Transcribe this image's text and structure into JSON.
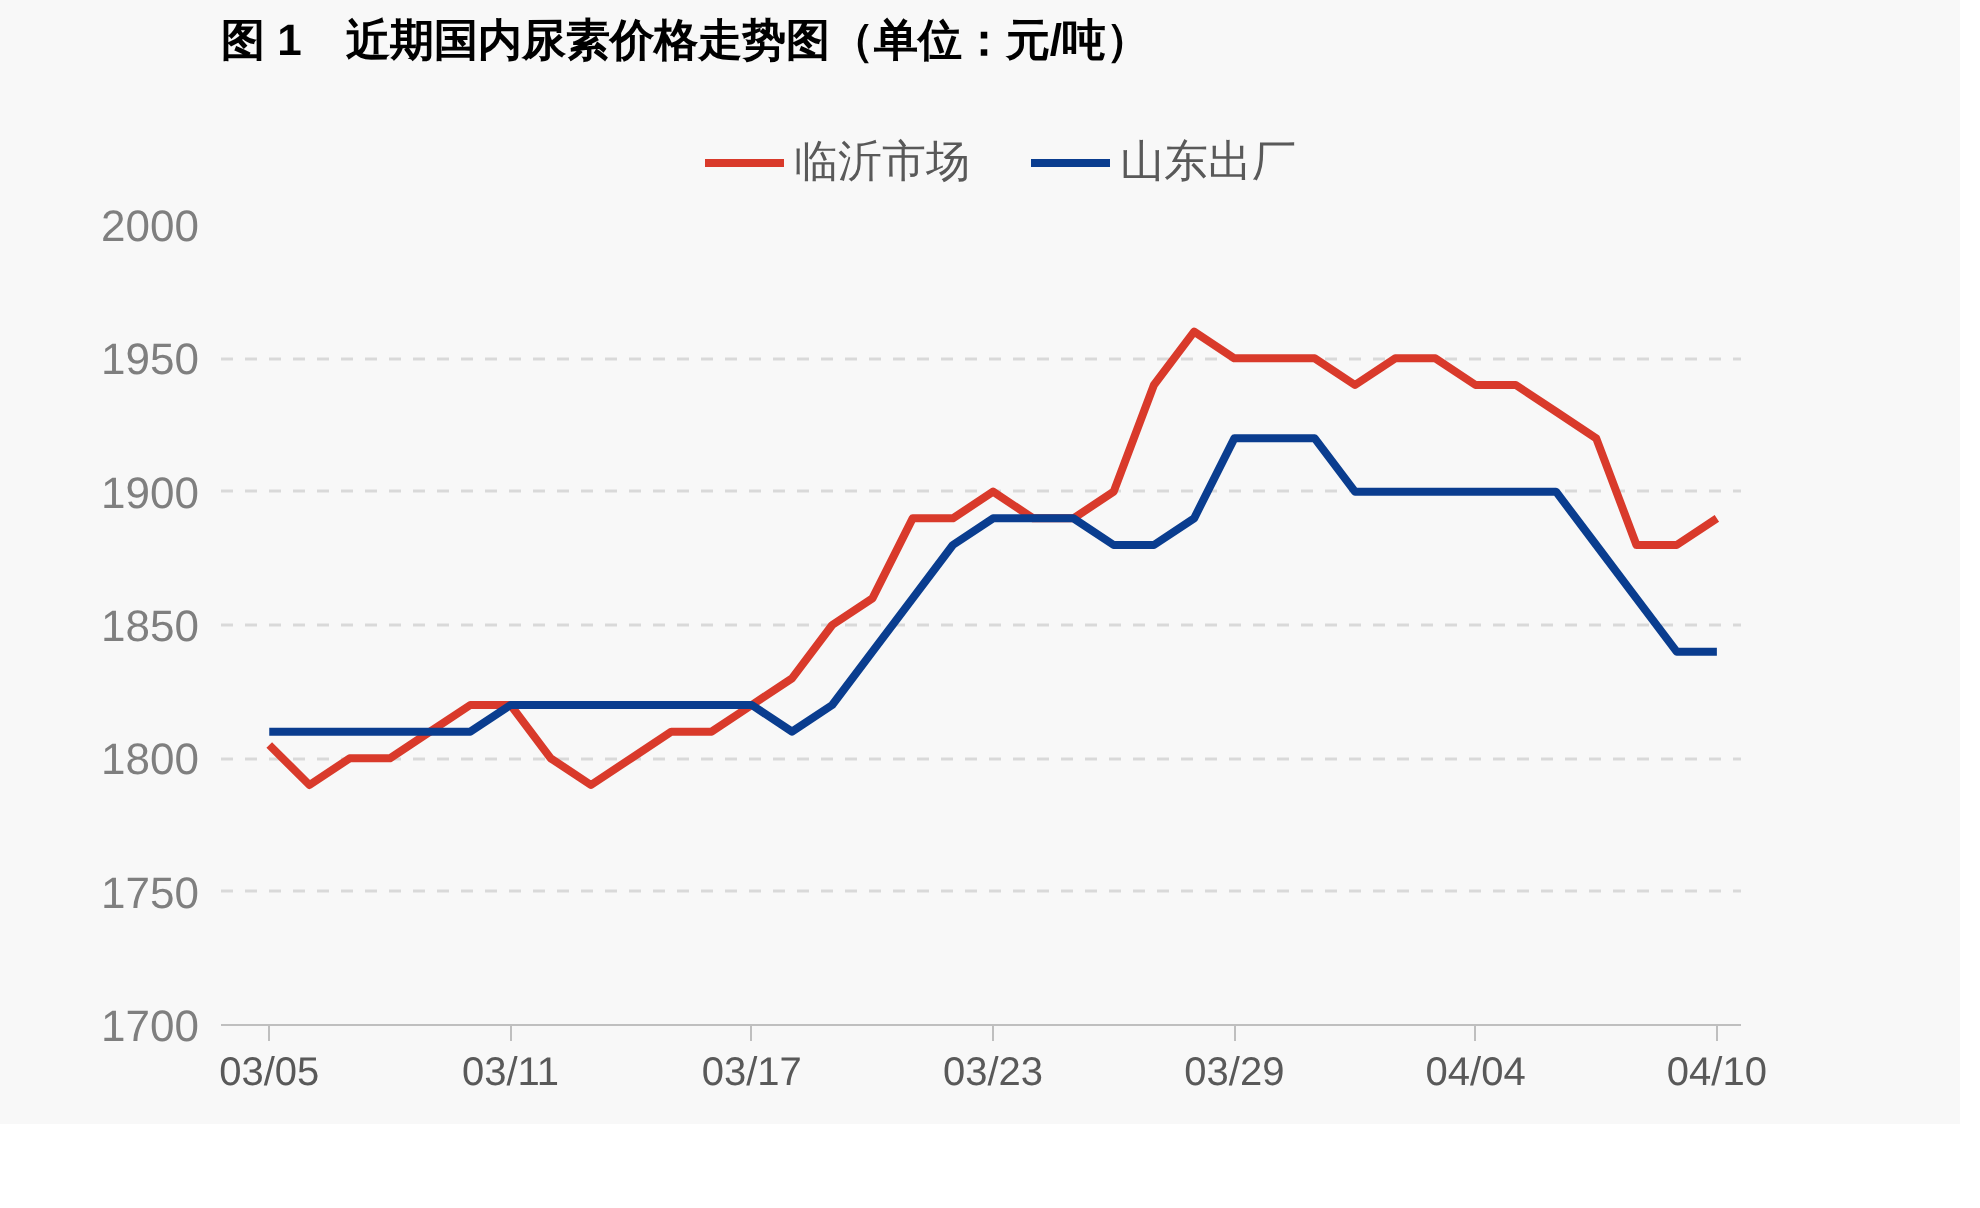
{
  "chart_data": {
    "type": "line",
    "title": "图 1　近期国内尿素价格走势图（单位：元/吨）",
    "categories": [
      "03/05",
      null,
      null,
      null,
      null,
      null,
      "03/11",
      null,
      null,
      null,
      null,
      null,
      "03/17",
      null,
      null,
      null,
      null,
      null,
      "03/23",
      null,
      null,
      null,
      null,
      null,
      "03/29",
      null,
      null,
      null,
      null,
      null,
      "04/04",
      null,
      null,
      null,
      null,
      null,
      "04/10"
    ],
    "series": [
      {
        "name": "临沂市场",
        "color": "#d93a2b",
        "values": [
          1805,
          1790,
          1800,
          1800,
          1810,
          1820,
          1820,
          1800,
          1790,
          1800,
          1810,
          1810,
          1820,
          1830,
          1850,
          1860,
          1890,
          1890,
          1900,
          1890,
          1890,
          1900,
          1940,
          1960,
          1950,
          1950,
          1950,
          1940,
          1950,
          1950,
          1940,
          1940,
          1930,
          1920,
          1880,
          1880,
          1890
        ]
      },
      {
        "name": "山东出厂",
        "color": "#0a3d8f",
        "values": [
          1810,
          1810,
          1810,
          1810,
          1810,
          1810,
          1820,
          1820,
          1820,
          1820,
          1820,
          1820,
          1820,
          1810,
          1820,
          1840,
          1860,
          1880,
          1890,
          1890,
          1890,
          1880,
          1880,
          1890,
          1920,
          1920,
          1920,
          1900,
          1900,
          1900,
          1900,
          1900,
          1900,
          1880,
          1860,
          1840,
          1840
        ]
      }
    ],
    "ylim": [
      1700,
      2000
    ],
    "yticks": [
      1700,
      1750,
      1800,
      1850,
      1900,
      1950,
      2000
    ],
    "grid": "y",
    "legend": "top",
    "marker": "none",
    "line_style": "solid"
  }
}
